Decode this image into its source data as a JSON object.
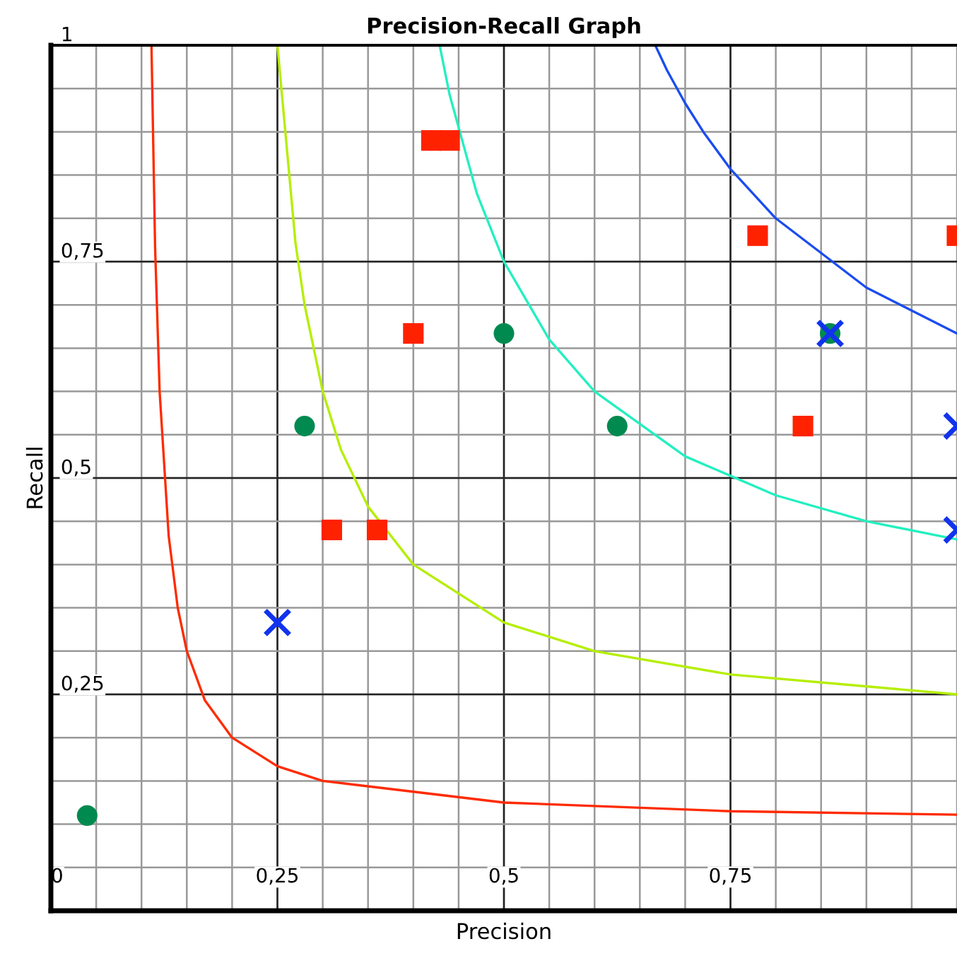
{
  "chart_data": {
    "type": "scatter",
    "title": "Precision-Recall Graph",
    "xlabel": "Precision",
    "ylabel": "Recall",
    "xlim": [
      0,
      1
    ],
    "ylim": [
      0,
      1
    ],
    "xticks": [
      {
        "value": 0,
        "label": "0"
      },
      {
        "value": 0.25,
        "label": "0,25"
      },
      {
        "value": 0.5,
        "label": "0,5"
      },
      {
        "value": 0.75,
        "label": "0,75"
      }
    ],
    "yticks": [
      {
        "value": 0.25,
        "label": "0,25"
      },
      {
        "value": 0.5,
        "label": "0,5"
      },
      {
        "value": 0.75,
        "label": "0,75"
      },
      {
        "value": 1,
        "label": "1"
      }
    ],
    "grid": true,
    "legend": false,
    "series": [
      {
        "type": "line",
        "color": "#ff2a00",
        "x": [
          0.111,
          0.115,
          0.12,
          0.13,
          0.14,
          0.15,
          0.17,
          0.2,
          0.25,
          0.3,
          0.5,
          0.75,
          1
        ],
        "values": [
          1,
          0.767,
          0.6,
          0.433,
          0.35,
          0.3,
          0.243,
          0.2,
          0.167,
          0.15,
          0.125,
          0.115,
          0.111
        ]
      },
      {
        "type": "line",
        "color": "#b5ee00",
        "x": [
          0.25,
          0.27,
          0.28,
          0.3,
          0.32,
          0.35,
          0.4,
          0.5,
          0.6,
          0.75,
          1
        ],
        "values": [
          1,
          0.771,
          0.7,
          0.6,
          0.533,
          0.467,
          0.4,
          0.333,
          0.3,
          0.273,
          0.25
        ]
      },
      {
        "type": "line",
        "color": "#22f0c0",
        "x": [
          0.429,
          0.44,
          0.47,
          0.5,
          0.55,
          0.6,
          0.7,
          0.8,
          0.9,
          1
        ],
        "values": [
          1,
          0.943,
          0.829,
          0.75,
          0.66,
          0.6,
          0.525,
          0.48,
          0.45,
          0.429
        ]
      },
      {
        "type": "line",
        "color": "#1a4cf0",
        "x": [
          0.667,
          0.68,
          0.7,
          0.72,
          0.75,
          0.8,
          0.9,
          1
        ],
        "values": [
          1,
          0.971,
          0.933,
          0.9,
          0.857,
          0.8,
          0.72,
          0.667
        ]
      },
      {
        "marker": "square",
        "color": "#ff2200",
        "x": [
          0.42,
          0.44,
          0.4,
          0.31,
          0.36,
          0.78,
          0.83,
          1
        ],
        "values": [
          0.89,
          0.89,
          0.667,
          0.44,
          0.44,
          0.78,
          0.56,
          0.78
        ]
      },
      {
        "marker": "circle",
        "color": "#008a50",
        "x": [
          0.04,
          0.28,
          0.5,
          0.625,
          0.86
        ],
        "values": [
          0.11,
          0.56,
          0.667,
          0.56,
          0.667
        ]
      },
      {
        "marker": "cross",
        "color": "#1133ee",
        "x": [
          0.25,
          0.86,
          1,
          1
        ],
        "values": [
          0.333,
          0.667,
          0.56,
          0.44
        ]
      }
    ]
  }
}
